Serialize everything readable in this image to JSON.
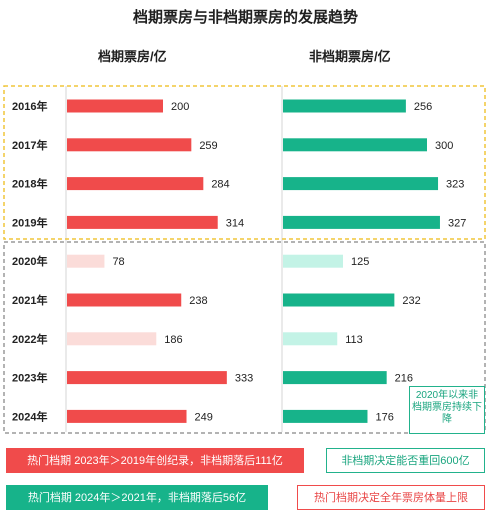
{
  "title": "档期票房与非档期票房的发展趋势",
  "colors": {
    "holiday": "#f04b4b",
    "holiday_light": "#fbdcd9",
    "non_holiday": "#17b38a",
    "non_holiday_light": "#c3f3e6",
    "yellow_box": "#f0c53a",
    "gray_box": "#9a9a9a"
  },
  "chart_data": [
    {
      "type": "bar",
      "orientation": "horizontal",
      "title": "档期票房/亿",
      "categories": [
        "2016年",
        "2017年",
        "2018年",
        "2019年",
        "2020年",
        "2021年",
        "2022年",
        "2023年",
        "2024年"
      ],
      "values": [
        200,
        259,
        284,
        314,
        78,
        238,
        186,
        333,
        249
      ],
      "highlight": [
        true,
        true,
        true,
        true,
        false,
        true,
        false,
        true,
        true
      ]
    },
    {
      "type": "bar",
      "orientation": "horizontal",
      "title": "非档期票房/亿",
      "categories": [
        "2016年",
        "2017年",
        "2018年",
        "2019年",
        "2020年",
        "2021年",
        "2022年",
        "2023年",
        "2024年"
      ],
      "values": [
        256,
        300,
        323,
        327,
        125,
        232,
        113,
        216,
        176
      ],
      "highlight": [
        true,
        true,
        true,
        true,
        false,
        true,
        false,
        true,
        true
      ]
    }
  ],
  "notes": {
    "side_note": "2020年以来非档期票房持续下降",
    "note_1": "热门档期 2023年＞2019年创纪录，非档期落后111亿",
    "note_2": "非档期决定能否重回600亿",
    "note_3": "热门档期 2024年＞2021年，非档期落后56亿",
    "note_4": "热门档期决定全年票房体量上限"
  }
}
